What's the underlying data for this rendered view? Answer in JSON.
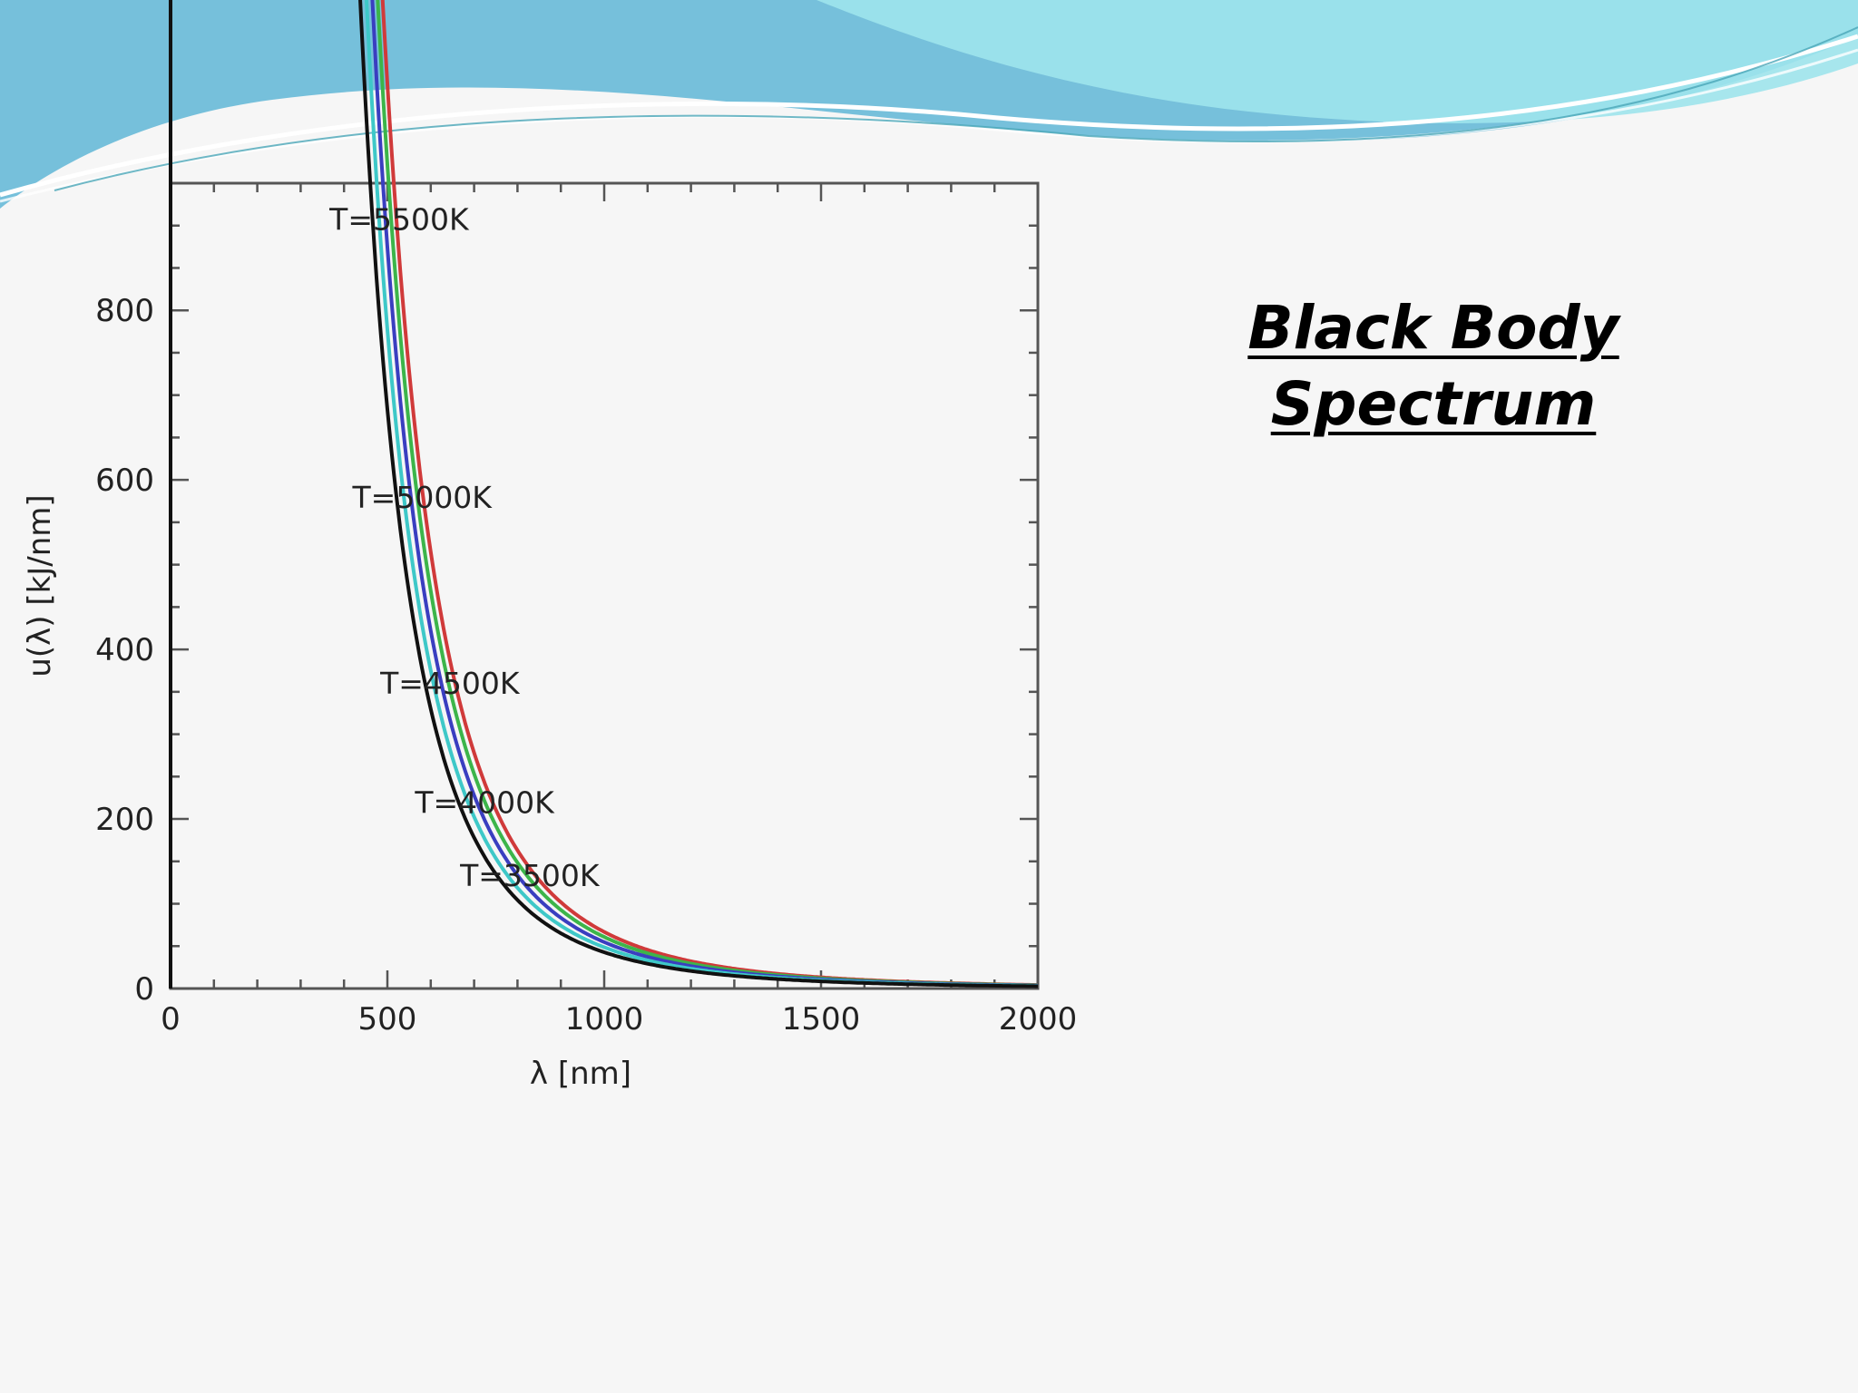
{
  "slide": {
    "title_line1": "Black Body",
    "title_line2": "Spectrum"
  },
  "colors": {
    "wave_dark": "#5fb6d6",
    "wave_light": "#8fe0ea",
    "background": "#f6f6f6"
  },
  "chart_data": {
    "type": "line",
    "xlabel": "λ [nm]",
    "ylabel": "u(λ) [kJ/nm]",
    "xlim": [
      0,
      2000
    ],
    "ylim": [
      0,
      950
    ],
    "x_ticks": [
      0,
      500,
      1000,
      1500,
      2000
    ],
    "y_ticks": [
      0,
      200,
      400,
      600,
      800
    ],
    "grid": false,
    "legend": "inline labels near curve peaks",
    "series": [
      {
        "name": "T=5500K",
        "temperature_K": 5500,
        "peak_nm": 527,
        "peak_value": 865,
        "color": "#d03a3a"
      },
      {
        "name": "T=5000K",
        "temperature_K": 5000,
        "peak_nm": 580,
        "peak_value": 537,
        "color": "#3cb54a"
      },
      {
        "name": "T=4500K",
        "temperature_K": 4500,
        "peak_nm": 644,
        "peak_value": 318,
        "color": "#3a3ec0"
      },
      {
        "name": "T=4000K",
        "temperature_K": 4000,
        "peak_nm": 724,
        "peak_value": 177,
        "color": "#3ec8c8"
      },
      {
        "name": "T=3500K",
        "temperature_K": 3500,
        "peak_nm": 828,
        "peak_value": 91,
        "color": "#111111"
      }
    ]
  }
}
